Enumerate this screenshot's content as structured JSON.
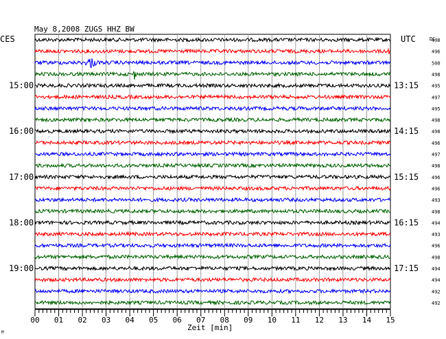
{
  "chart_data": {
    "type": "line",
    "title": "May 8,2008   ZUGS HHZ BW",
    "left_axis_label": "CES",
    "right_axis_label": "UTC",
    "dc_label": "DC",
    "xlabel": "Zeit [min]",
    "x_ticks": [
      "00",
      "01",
      "02",
      "03",
      "04",
      "05",
      "06",
      "07",
      "08",
      "09",
      "10",
      "11",
      "12",
      "13",
      "14",
      "15"
    ],
    "xlim": [
      0,
      15
    ],
    "grid": true,
    "local_time_labels": [
      {
        "text": "15:00",
        "trace": 4
      },
      {
        "text": "16:00",
        "trace": 8
      },
      {
        "text": "17:00",
        "trace": 12
      },
      {
        "text": "18:00",
        "trace": 16
      },
      {
        "text": "19:00",
        "trace": 20
      }
    ],
    "utc_time_labels": [
      {
        "text": "13:15",
        "trace": 4
      },
      {
        "text": "14:15",
        "trace": 8
      },
      {
        "text": "15:15",
        "trace": 12
      },
      {
        "text": "16:15",
        "trace": 16
      },
      {
        "text": "17:15",
        "trace": 20
      }
    ],
    "trace_colors": [
      "#000000",
      "#ff0000",
      "#0000ff",
      "#006400"
    ],
    "dc_offsets": [
      498,
      496,
      500,
      498,
      495,
      497,
      495,
      498,
      498,
      496,
      497,
      498,
      496,
      496,
      493,
      498,
      494,
      493,
      496,
      498,
      494,
      494,
      492,
      492
    ],
    "events": [
      {
        "trace": 2,
        "start_min": 2.0,
        "end_min": 3.3,
        "peak_min": 2.35,
        "amplitude": "large"
      },
      {
        "trace": 3,
        "start_min": 4.15,
        "end_min": 4.35,
        "peak_min": 4.2,
        "amplitude": "spike"
      },
      {
        "trace": 1,
        "start_min": 14.75,
        "end_min": 15.0,
        "peak_min": 14.95,
        "amplitude": "medium"
      },
      {
        "trace": 7,
        "start_min": 10.9,
        "end_min": 11.3,
        "peak_min": 11.1,
        "amplitude": "small"
      }
    ]
  },
  "footer_mark": "M"
}
